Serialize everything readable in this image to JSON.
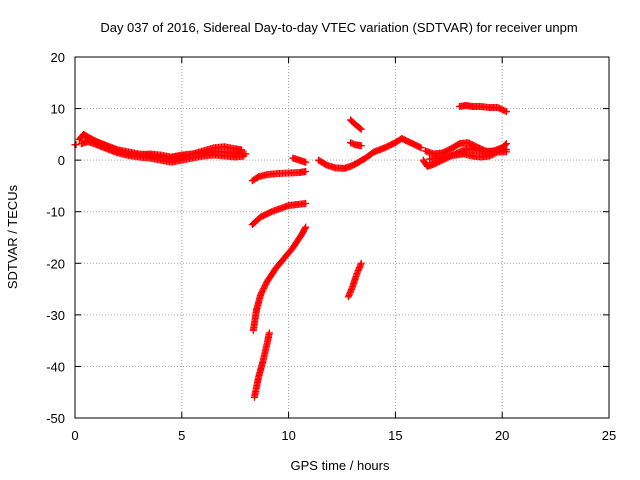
{
  "chart_data": {
    "type": "scatter",
    "title": "Day 037 of 2016, Sidereal Day-to-day VTEC variation (SDTVAR) for receiver unpm",
    "xlabel": "GPS time / hours",
    "ylabel": "SDTVAR / TECUs",
    "xlim": [
      0,
      25
    ],
    "ylim": [
      -50,
      20
    ],
    "xticks": [
      0,
      5,
      10,
      15,
      20,
      25
    ],
    "yticks": [
      -50,
      -40,
      -30,
      -20,
      -10,
      0,
      10,
      20
    ],
    "grid": true,
    "marker": "+",
    "color": "#ff0000",
    "series": [
      {
        "x": [
          0.0,
          0.05
        ],
        "y": [
          3.0,
          3.0
        ]
      },
      {
        "x": [
          0.2,
          0.4,
          0.6,
          1.0,
          1.5,
          2.0,
          2.5,
          3.0,
          3.5,
          4.0,
          4.5,
          5.0,
          5.5,
          6.0,
          6.5,
          7.0,
          7.5,
          7.8
        ],
        "y": [
          4.0,
          5.0,
          4.5,
          3.6,
          2.8,
          2.0,
          1.6,
          1.2,
          1.0,
          0.6,
          0.4,
          0.8,
          1.2,
          1.8,
          2.4,
          2.6,
          2.2,
          2.0
        ]
      },
      {
        "x": [
          0.3,
          0.6,
          1.0,
          1.5,
          2.0,
          2.5,
          3.0,
          3.5,
          4.0,
          4.5,
          5.0,
          5.5,
          6.0,
          6.5,
          7.0,
          7.5,
          7.9
        ],
        "y": [
          3.2,
          3.6,
          3.0,
          2.2,
          1.4,
          0.9,
          0.6,
          0.4,
          0.0,
          -0.4,
          0.0,
          0.4,
          0.8,
          1.0,
          0.8,
          0.6,
          0.8
        ]
      },
      {
        "x": [
          0.5,
          1.0,
          1.5,
          2.0,
          2.5,
          3.0,
          3.5,
          4.0,
          4.5,
          5.0,
          5.5,
          6.0,
          6.5,
          7.0,
          7.5,
          8.0
        ],
        "y": [
          4.4,
          3.6,
          2.6,
          1.8,
          1.2,
          1.0,
          1.2,
          1.0,
          0.6,
          1.0,
          1.2,
          1.4,
          1.6,
          1.6,
          1.4,
          1.2
        ]
      },
      {
        "x": [
          8.3,
          8.6,
          9.0,
          9.5,
          10.0,
          10.5,
          10.8
        ],
        "y": [
          -4.0,
          -3.2,
          -2.8,
          -2.6,
          -2.5,
          -2.4,
          -2.2
        ]
      },
      {
        "x": [
          8.3,
          8.7,
          9.2,
          9.6,
          10.0,
          10.4,
          10.8
        ],
        "y": [
          -12.5,
          -11.0,
          -10.0,
          -9.4,
          -8.8,
          -8.6,
          -8.4
        ]
      },
      {
        "x": [
          8.35,
          8.5,
          8.7,
          9.0,
          9.4,
          9.8,
          10.2,
          10.6,
          10.8
        ],
        "y": [
          -33.0,
          -29.0,
          -26.0,
          -23.5,
          -21.0,
          -19.0,
          -17.0,
          -14.5,
          -13.0
        ]
      },
      {
        "x": [
          8.4,
          8.6,
          8.8,
          9.0,
          9.1
        ],
        "y": [
          -46.0,
          -42.0,
          -39.0,
          -35.5,
          -33.5
        ]
      },
      {
        "x": [
          10.2,
          10.5,
          10.8
        ],
        "y": [
          0.4,
          0.0,
          -0.4
        ]
      },
      {
        "x": [
          11.4,
          11.8,
          12.2,
          12.6,
          12.9,
          13.2,
          13.6,
          14.0,
          14.5,
          15.0,
          15.3,
          15.6,
          15.9,
          16.2
        ],
        "y": [
          0.0,
          -1.0,
          -1.5,
          -1.6,
          -1.2,
          -0.6,
          0.4,
          1.6,
          2.4,
          3.4,
          4.2,
          3.6,
          3.0,
          2.4
        ]
      },
      {
        "x": [
          12.9,
          13.1,
          13.4
        ],
        "y": [
          7.8,
          7.0,
          6.0
        ]
      },
      {
        "x": [
          12.9,
          13.1,
          13.4
        ],
        "y": [
          3.4,
          3.0,
          2.8
        ]
      },
      {
        "x": [
          12.8,
          13.0,
          13.2,
          13.4
        ],
        "y": [
          -26.5,
          -24.5,
          -22.0,
          -20.0
        ]
      },
      {
        "x": [
          16.3,
          16.5,
          16.8,
          17.2,
          17.6,
          18.0,
          18.4,
          18.8,
          19.2,
          19.6,
          20.0,
          20.2
        ],
        "y": [
          0.0,
          -1.2,
          -0.8,
          0.0,
          0.8,
          1.6,
          2.2,
          2.0,
          1.6,
          1.8,
          2.4,
          2.0
        ]
      },
      {
        "x": [
          16.4,
          16.8,
          17.2,
          17.6,
          18.0,
          18.4,
          18.8,
          19.2,
          19.6,
          20.0,
          20.2
        ],
        "y": [
          1.8,
          1.2,
          1.4,
          2.2,
          3.2,
          3.4,
          2.6,
          1.8,
          1.6,
          2.4,
          3.2
        ]
      },
      {
        "x": [
          16.6,
          17.0,
          17.4,
          17.8,
          18.2,
          18.6,
          19.0,
          19.4,
          19.8,
          20.2
        ],
        "y": [
          0.2,
          0.4,
          0.8,
          1.0,
          1.2,
          0.8,
          0.6,
          0.8,
          1.6,
          1.6
        ]
      },
      {
        "x": [
          18.0,
          18.3,
          18.6,
          19.0,
          19.4,
          19.8,
          20.2
        ],
        "y": [
          10.4,
          10.6,
          10.4,
          10.4,
          10.2,
          10.2,
          9.4
        ]
      }
    ]
  }
}
